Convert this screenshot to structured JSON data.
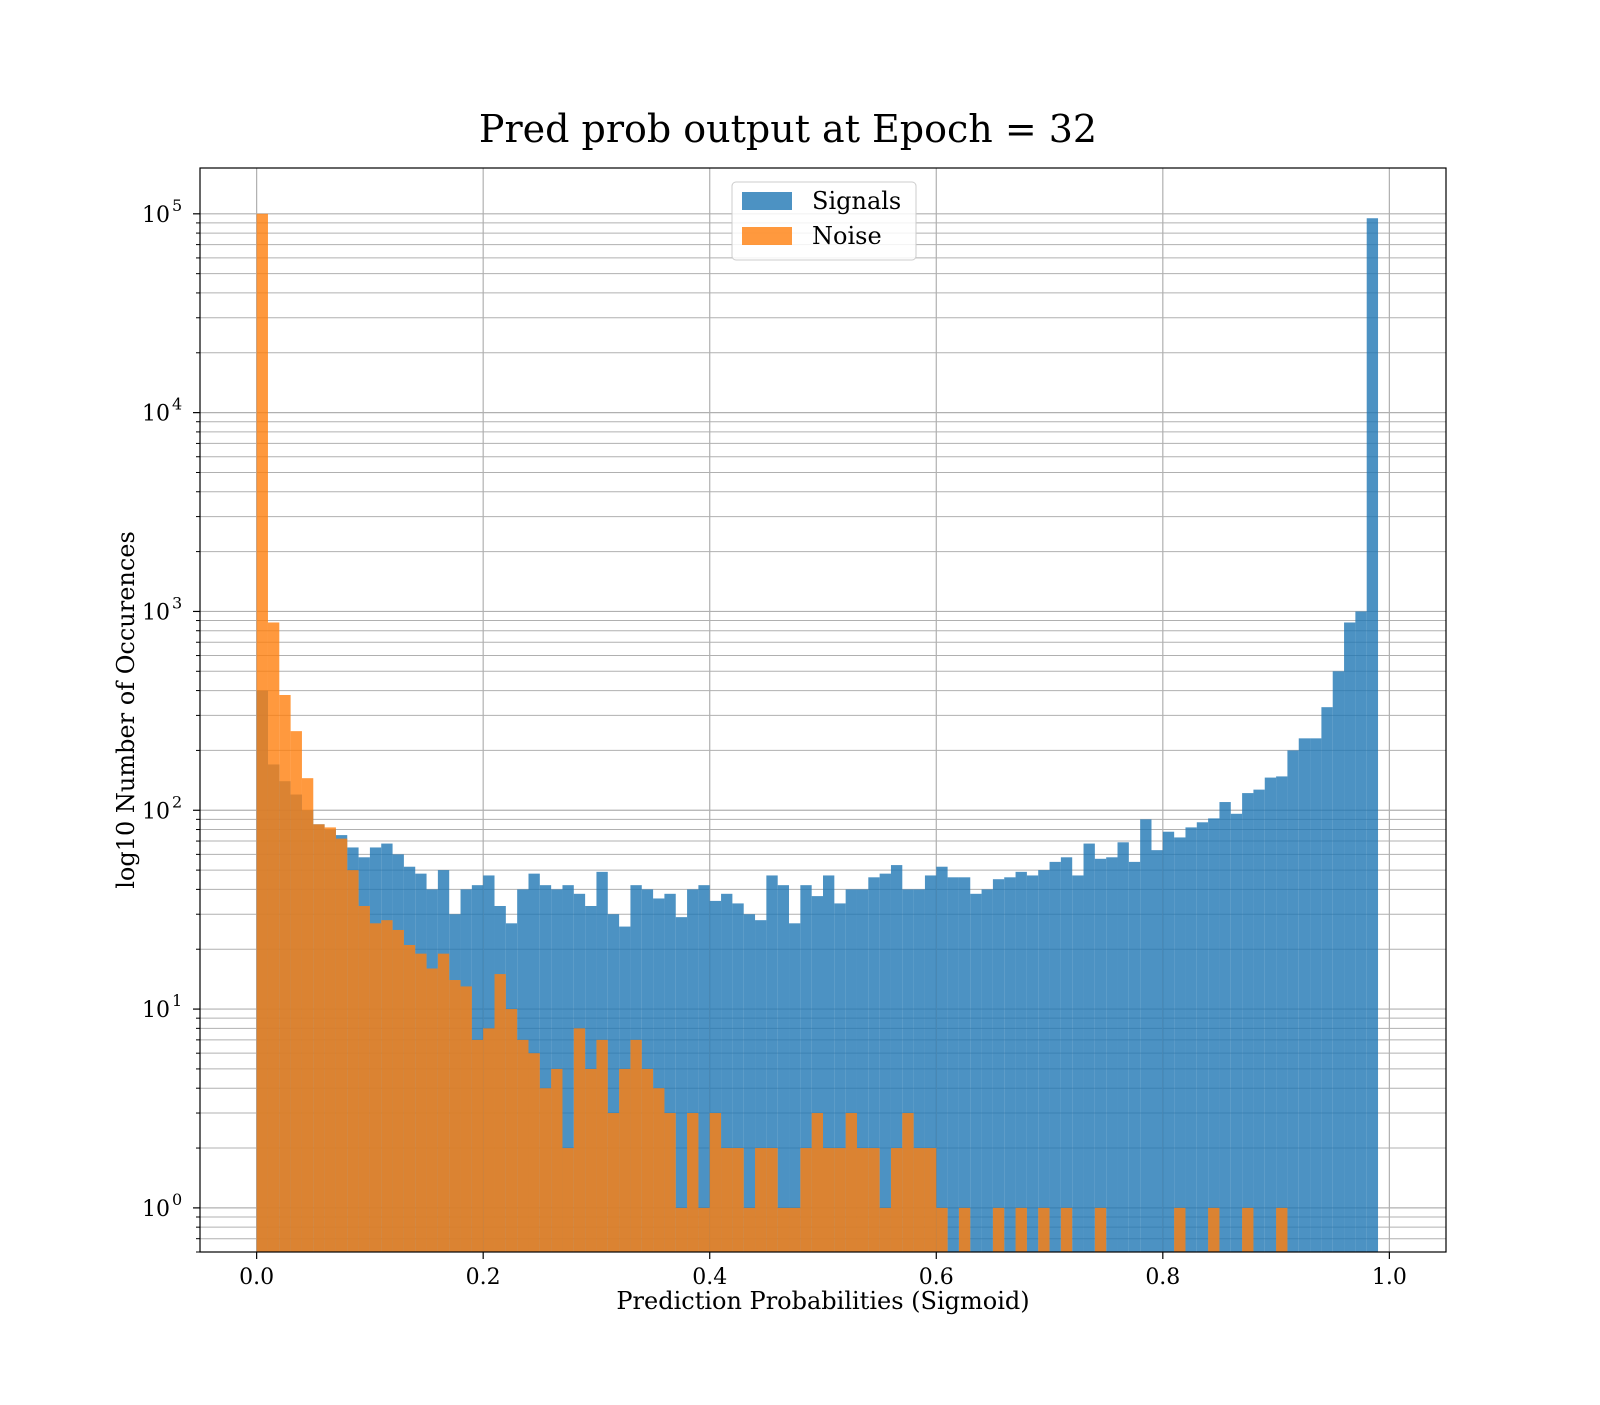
{
  "chart_data": {
    "type": "bar",
    "title": "Pred prob output at Epoch = 32",
    "xlabel": "Prediction Probabilities (Sigmoid)",
    "ylabel": "log10 Number of Occurences",
    "xlim": [
      -0.05,
      1.05
    ],
    "ylim": [
      0.6,
      170000
    ],
    "yscale": "log",
    "grid": true,
    "legend_position": "upper center",
    "bins": 100,
    "bin_range": [
      0,
      1
    ],
    "x_ticks": [
      "0.0",
      "0.2",
      "0.4",
      "0.6",
      "0.8",
      "1.0"
    ],
    "x_tick_values": [
      0.0,
      0.2,
      0.4,
      0.6,
      0.8,
      1.0
    ],
    "y_ticks": [
      {
        "base": "10",
        "exp": "0",
        "value": 1
      },
      {
        "base": "10",
        "exp": "1",
        "value": 10
      },
      {
        "base": "10",
        "exp": "2",
        "value": 100
      },
      {
        "base": "10",
        "exp": "3",
        "value": 1000
      },
      {
        "base": "10",
        "exp": "4",
        "value": 10000
      },
      {
        "base": "10",
        "exp": "5",
        "value": 100000
      }
    ],
    "series": [
      {
        "name": "Signals",
        "color": "#1f77b4",
        "values": [
          400,
          170,
          140,
          120,
          100,
          85,
          80,
          75,
          65,
          58,
          65,
          68,
          60,
          52,
          48,
          40,
          50,
          30,
          40,
          42,
          47,
          33,
          27,
          40,
          48,
          42,
          40,
          42,
          38,
          33,
          49,
          30,
          26,
          42,
          40,
          36,
          38,
          29,
          40,
          42,
          35,
          38,
          34,
          30,
          28,
          47,
          42,
          27,
          42,
          37,
          47,
          34,
          40,
          40,
          46,
          48,
          53,
          40,
          40,
          47,
          52,
          46,
          46,
          38,
          40,
          45,
          46,
          49,
          47,
          50,
          55,
          58,
          47,
          68,
          57,
          58,
          69,
          55,
          90,
          63,
          78,
          73,
          82,
          87,
          91,
          110,
          96,
          122,
          127,
          146,
          148,
          200,
          230,
          230,
          330,
          500,
          880,
          1000,
          95000,
          0
        ]
      },
      {
        "name": "Noise",
        "color": "#ff7f0e",
        "values": [
          100000,
          880,
          380,
          250,
          145,
          85,
          82,
          72,
          50,
          33,
          27,
          28,
          25,
          21,
          19,
          16,
          19,
          14,
          13,
          7,
          8,
          15,
          10,
          7,
          6,
          4,
          5,
          2,
          8,
          5,
          7,
          3,
          5,
          7,
          5,
          4,
          3,
          1,
          3,
          1,
          3,
          2,
          2,
          1,
          2,
          2,
          1,
          1,
          2,
          3,
          2,
          2,
          3,
          2,
          2,
          1,
          2,
          3,
          2,
          2,
          1,
          0,
          1,
          0,
          0,
          1,
          0,
          1,
          0,
          1,
          0,
          1,
          0,
          0,
          1,
          0,
          0,
          0,
          0,
          0,
          0,
          1,
          0,
          0,
          1,
          0,
          0,
          1,
          0,
          0,
          1,
          0,
          0,
          0,
          0,
          0,
          0,
          0,
          0,
          0
        ]
      }
    ]
  }
}
